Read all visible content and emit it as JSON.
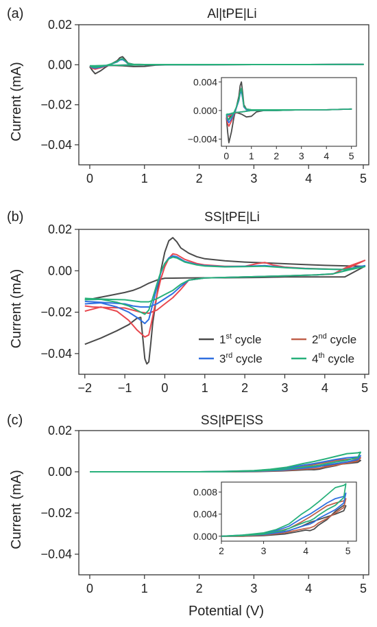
{
  "figure": {
    "xlabel": "Potential (V)",
    "ylabel": "Current (mA)",
    "colors": {
      "cycle1": "#4a4a4a",
      "cycle2": "#e8474d",
      "cycle2_b": "#c0604a",
      "cycle3": "#2f6fe0",
      "cycle4": "#27b07a",
      "axis": "#333333"
    }
  },
  "chart_data": [
    {
      "type": "line",
      "panel_label": "(a)",
      "title": "Al|tPE|Li",
      "xlabel": "",
      "ylabel": "Current (mA)",
      "xlim": [
        -0.2,
        5.1
      ],
      "ylim": [
        -0.05,
        0.02
      ],
      "xticks": [
        0,
        1,
        2,
        3,
        4,
        5
      ],
      "yticks": [
        0.02,
        0.0,
        -0.02,
        -0.04
      ],
      "ytick_labels": [
        "0.02",
        "0.00",
        "−0.02",
        "−0.04"
      ],
      "series": [
        {
          "color_key": "cycle1",
          "x": [
            0.0,
            0.05,
            0.1,
            0.2,
            0.3,
            0.4,
            0.5,
            0.55,
            0.6,
            0.65,
            0.7,
            0.8,
            1.0,
            1.5,
            2,
            3,
            4,
            5,
            4,
            3,
            2,
            1.5,
            1.2,
            1.0,
            0.8,
            0.6,
            0.4,
            0.2,
            0.1,
            0.05,
            0.0
          ],
          "y": [
            -0.001,
            -0.003,
            -0.0045,
            -0.003,
            -0.001,
            0.0005,
            0.002,
            0.0035,
            0.004,
            0.0025,
            0.0008,
            0.0002,
            0.0001,
            0.0001,
            0.0001,
            0.0001,
            0.0001,
            0.0002,
            0.0001,
            0.0001,
            0.0,
            0.0,
            -0.0002,
            -0.0008,
            -0.0009,
            -0.0005,
            -0.0003,
            -0.0006,
            -0.0012,
            -0.0015,
            -0.001
          ]
        },
        {
          "color_key": "cycle2",
          "x": [
            0.0,
            0.05,
            0.1,
            0.2,
            0.3,
            0.4,
            0.5,
            0.55,
            0.6,
            0.65,
            0.7,
            0.8,
            1.0,
            2,
            3,
            4,
            5,
            4,
            3,
            2,
            1.0,
            0.6,
            0.3,
            0.1,
            0.0
          ],
          "y": [
            -0.0008,
            -0.0018,
            -0.0022,
            -0.0015,
            -0.0006,
            0.0004,
            0.0015,
            0.0026,
            0.0028,
            0.0018,
            0.0005,
            0.0001,
            0.0001,
            0.0001,
            0.0001,
            0.0001,
            0.0002,
            0.0001,
            0.0001,
            0.0,
            0.0,
            -0.0002,
            -0.0004,
            -0.0008,
            -0.0008
          ]
        },
        {
          "color_key": "cycle3",
          "x": [
            0.0,
            0.05,
            0.1,
            0.2,
            0.3,
            0.4,
            0.5,
            0.55,
            0.6,
            0.65,
            0.7,
            0.8,
            1.0,
            2,
            3,
            4,
            5,
            4,
            3,
            2,
            1.0,
            0.6,
            0.3,
            0.1,
            0.0
          ],
          "y": [
            -0.0006,
            -0.0014,
            -0.0017,
            -0.0012,
            -0.0005,
            0.0004,
            0.0014,
            0.0024,
            0.0026,
            0.0017,
            0.0005,
            0.0001,
            0.0001,
            0.0001,
            0.0001,
            0.0001,
            0.0002,
            0.0001,
            0.0001,
            0.0,
            0.0,
            -0.0002,
            -0.0003,
            -0.0006,
            -0.0006
          ]
        },
        {
          "color_key": "cycle4",
          "x": [
            0.0,
            0.05,
            0.1,
            0.2,
            0.3,
            0.4,
            0.5,
            0.55,
            0.6,
            0.65,
            0.7,
            0.8,
            1.0,
            2,
            3,
            4,
            5,
            4,
            3,
            2,
            1.0,
            0.6,
            0.3,
            0.1,
            0.0
          ],
          "y": [
            -0.0005,
            -0.0011,
            -0.0013,
            -0.0009,
            -0.0003,
            0.0005,
            0.0016,
            0.0026,
            0.0031,
            0.0019,
            0.0006,
            0.0002,
            0.0001,
            0.0001,
            0.0001,
            0.0001,
            0.0002,
            0.0001,
            0.0001,
            0.0,
            0.0,
            -0.0002,
            -0.0003,
            -0.0005,
            -0.0005
          ]
        }
      ],
      "inset": {
        "xlim": [
          -0.2,
          5.2
        ],
        "ylim": [
          -0.005,
          0.0046
        ],
        "xticks": [
          0,
          1,
          2,
          3,
          4,
          5
        ],
        "yticks": [
          0.004,
          0.0,
          -0.004
        ],
        "ytick_labels": [
          "0.004",
          "0.000",
          "−0.004"
        ]
      }
    },
    {
      "type": "line",
      "panel_label": "(b)",
      "title": "SS|tPE|Li",
      "xlabel": "",
      "ylabel": "Current (mA)",
      "xlim": [
        -2.15,
        5.1
      ],
      "ylim": [
        -0.05,
        0.02
      ],
      "xticks": [
        -2,
        -1,
        0,
        1,
        2,
        3,
        4,
        5
      ],
      "xtick_labels": [
        "−2",
        "−1",
        "0",
        "1",
        "2",
        "3",
        "4",
        "5"
      ],
      "yticks": [
        0.02,
        0.0,
        -0.02,
        -0.04
      ],
      "ytick_labels": [
        "0.02",
        "0.00",
        "−0.02",
        "−0.04"
      ],
      "legend": [
        {
          "label": "1",
          "sup": "st",
          "tail": " cycle",
          "color_key": "cycle1"
        },
        {
          "label": "2",
          "sup": "nd",
          "tail": " cycle",
          "color_key": "cycle2_b"
        },
        {
          "label": "3",
          "sup": "rd",
          "tail": " cycle",
          "color_key": "cycle3"
        },
        {
          "label": "4",
          "sup": "th",
          "tail": " cycle",
          "color_key": "cycle4"
        }
      ],
      "series": [
        {
          "color_key": "cycle1",
          "x": [
            -2.0,
            -1.6,
            -1.2,
            -0.9,
            -0.7,
            -0.6,
            -0.5,
            -0.45,
            -0.4,
            -0.35,
            -0.3,
            -0.2,
            -0.1,
            0.0,
            0.1,
            0.2,
            0.3,
            0.4,
            0.6,
            0.8,
            1.0,
            1.5,
            2.0,
            2.5,
            3.0,
            3.5,
            4.0,
            4.5,
            5.0,
            4.5,
            4.0,
            3.5,
            3.0,
            2.5,
            2.0,
            1.5,
            1.0,
            0.5,
            0.0,
            -0.2,
            -0.4,
            -0.6,
            -0.8,
            -1.0,
            -1.4,
            -1.8,
            -2.0
          ],
          "y": [
            -0.0355,
            -0.0325,
            -0.029,
            -0.026,
            -0.023,
            -0.0225,
            -0.0425,
            -0.045,
            -0.044,
            -0.035,
            -0.025,
            -0.012,
            0.0,
            0.009,
            0.0145,
            0.016,
            0.014,
            0.011,
            0.0085,
            0.0068,
            0.0058,
            0.0048,
            0.0042,
            0.0038,
            0.0034,
            0.003,
            0.0026,
            0.0024,
            0.0022,
            -0.003,
            -0.003,
            -0.003,
            -0.003,
            -0.0032,
            -0.0033,
            -0.0034,
            -0.0034,
            -0.0035,
            -0.0036,
            -0.0045,
            -0.006,
            -0.008,
            -0.0095,
            -0.0105,
            -0.012,
            -0.0135,
            -0.014
          ]
        },
        {
          "color_key": "cycle2",
          "x": [
            -2.0,
            -1.6,
            -1.2,
            -0.9,
            -0.7,
            -0.5,
            -0.4,
            -0.3,
            -0.2,
            -0.1,
            0.0,
            0.1,
            0.2,
            0.3,
            0.5,
            0.8,
            1.0,
            1.5,
            2.0,
            2.3,
            2.5,
            2.7,
            3.0,
            3.5,
            4.0,
            4.5,
            5.0,
            4.6,
            4.2,
            3.8,
            3.0,
            2.0,
            1.0,
            0.6,
            0.4,
            0.2,
            0.0,
            -0.2,
            -0.4,
            -0.6,
            -0.8,
            -1.0,
            -1.4,
            -1.8,
            -2.0
          ],
          "y": [
            -0.0195,
            -0.0175,
            -0.0195,
            -0.024,
            -0.0285,
            -0.032,
            -0.031,
            -0.022,
            -0.012,
            -0.004,
            0.002,
            0.006,
            0.0082,
            0.0078,
            0.0055,
            0.0035,
            0.0028,
            0.0022,
            0.0022,
            0.0034,
            0.004,
            0.0028,
            0.0018,
            0.0012,
            0.0009,
            0.0006,
            0.005,
            0.0022,
            -0.0016,
            -0.002,
            -0.0025,
            -0.003,
            -0.0035,
            -0.0045,
            -0.009,
            -0.013,
            -0.016,
            -0.019,
            -0.0205,
            -0.02,
            -0.019,
            -0.018,
            -0.0178,
            -0.0175,
            -0.017
          ]
        },
        {
          "color_key": "cycle3",
          "x": [
            -2.0,
            -1.6,
            -1.2,
            -0.9,
            -0.7,
            -0.5,
            -0.4,
            -0.3,
            -0.2,
            -0.1,
            0.0,
            0.1,
            0.2,
            0.3,
            0.5,
            0.8,
            1.0,
            1.5,
            2.0,
            2.5,
            3.0,
            3.5,
            4.0,
            4.5,
            5.0,
            4.6,
            4.2,
            3.8,
            3.0,
            2.0,
            1.0,
            0.6,
            0.4,
            0.2,
            0.0,
            -0.2,
            -0.4,
            -0.6,
            -0.8,
            -1.0,
            -1.4,
            -1.8,
            -2.0
          ],
          "y": [
            -0.016,
            -0.0155,
            -0.0175,
            -0.02,
            -0.0225,
            -0.0255,
            -0.0235,
            -0.016,
            -0.008,
            -0.001,
            0.0035,
            0.0062,
            0.0072,
            0.0068,
            0.0045,
            0.003,
            0.0025,
            0.002,
            0.0022,
            0.0025,
            0.0016,
            0.0011,
            0.0008,
            0.0006,
            0.0025,
            0.0005,
            -0.0015,
            -0.002,
            -0.0025,
            -0.003,
            -0.0035,
            -0.0045,
            -0.0075,
            -0.011,
            -0.0135,
            -0.016,
            -0.0175,
            -0.0175,
            -0.017,
            -0.016,
            -0.0155,
            -0.015,
            -0.0148
          ]
        },
        {
          "color_key": "cycle4",
          "x": [
            -2.0,
            -1.6,
            -1.2,
            -0.9,
            -0.7,
            -0.5,
            -0.4,
            -0.3,
            -0.2,
            -0.1,
            0.0,
            0.1,
            0.2,
            0.3,
            0.5,
            0.8,
            1.0,
            1.5,
            2.0,
            2.5,
            3.0,
            3.5,
            4.0,
            4.5,
            5.0,
            4.6,
            4.2,
            3.8,
            3.0,
            2.0,
            1.0,
            0.6,
            0.4,
            0.2,
            0.0,
            -0.2,
            -0.4,
            -0.6,
            -0.8,
            -1.0,
            -1.4,
            -1.8,
            -2.0
          ],
          "y": [
            -0.014,
            -0.0138,
            -0.0152,
            -0.017,
            -0.019,
            -0.021,
            -0.019,
            -0.013,
            -0.0065,
            -0.0005,
            0.0035,
            0.0058,
            0.0066,
            0.0062,
            0.0042,
            0.0028,
            0.0023,
            0.0019,
            0.002,
            0.0022,
            0.0015,
            0.001,
            0.0008,
            0.0006,
            0.002,
            0.0004,
            -0.0015,
            -0.002,
            -0.0025,
            -0.003,
            -0.0035,
            -0.0045,
            -0.0065,
            -0.0095,
            -0.0115,
            -0.0135,
            -0.015,
            -0.015,
            -0.0145,
            -0.014,
            -0.0138,
            -0.0135,
            -0.0133
          ]
        }
      ]
    },
    {
      "type": "line",
      "panel_label": "(c)",
      "title": "SS|tPE|SS",
      "xlabel": "Potential (V)",
      "ylabel": "Current (mA)",
      "xlim": [
        -0.2,
        5.1
      ],
      "ylim": [
        -0.05,
        0.02
      ],
      "xticks": [
        0,
        1,
        2,
        3,
        4,
        5
      ],
      "yticks": [
        0.02,
        0.0,
        -0.02,
        -0.04
      ],
      "ytick_labels": [
        "0.02",
        "0.00",
        "−0.02",
        "−0.04"
      ],
      "series": [
        {
          "color_key": "cycle1",
          "x": [
            0.0,
            1.0,
            2.0,
            2.5,
            3.0,
            3.3,
            3.6,
            3.9,
            4.1,
            4.3,
            4.5,
            4.7,
            4.9,
            4.95,
            4.9,
            4.7,
            4.5,
            4.3,
            4.2,
            4.1,
            4.0,
            3.8,
            3.5,
            3.0,
            2.5,
            2.0,
            1.0,
            0.0
          ],
          "y": [
            0.0,
            0.0,
            0.0,
            0.0001,
            0.0003,
            0.0006,
            0.001,
            0.0018,
            0.0025,
            0.003,
            0.0035,
            0.004,
            0.0046,
            0.0055,
            0.0056,
            0.0045,
            0.003,
            0.002,
            0.0013,
            0.001,
            0.0011,
            0.0008,
            0.0004,
            0.0001,
            0.0,
            0.0,
            0.0,
            0.0
          ]
        },
        {
          "color_key": "cycle2_b",
          "x": [
            0.0,
            1.0,
            2.0,
            2.5,
            3.0,
            3.3,
            3.6,
            3.9,
            4.1,
            4.3,
            4.5,
            4.7,
            4.9,
            4.95,
            4.9,
            4.7,
            4.5,
            4.3,
            4.2,
            4.1,
            4.0,
            3.8,
            3.5,
            3.0,
            2.5,
            2.0,
            1.0,
            0.0
          ],
          "y": [
            0.0,
            0.0,
            0.0,
            0.0001,
            0.0004,
            0.0008,
            0.0014,
            0.0026,
            0.0035,
            0.0045,
            0.0055,
            0.006,
            0.0064,
            0.0068,
            0.0052,
            0.0042,
            0.0032,
            0.0024,
            0.0018,
            0.0015,
            0.0014,
            0.0011,
            0.0006,
            0.0002,
            0.0,
            0.0,
            0.0,
            0.0
          ]
        },
        {
          "color_key": "cycle3",
          "x": [
            0.0,
            1.0,
            2.0,
            2.5,
            3.0,
            3.3,
            3.6,
            3.9,
            4.1,
            4.3,
            4.5,
            4.7,
            4.9,
            4.95,
            4.9,
            4.7,
            4.5,
            4.3,
            4.2,
            4.1,
            4.0,
            3.8,
            3.5,
            3.0,
            2.5,
            2.0,
            1.0,
            0.0
          ],
          "y": [
            0.0,
            0.0,
            0.0,
            0.0002,
            0.0005,
            0.001,
            0.0018,
            0.0032,
            0.004,
            0.005,
            0.006,
            0.0068,
            0.0072,
            0.0078,
            0.006,
            0.0048,
            0.004,
            0.0032,
            0.0026,
            0.0022,
            0.002,
            0.0015,
            0.0008,
            0.0003,
            0.0001,
            0.0,
            0.0,
            0.0
          ]
        },
        {
          "color_key": "cycle4",
          "x": [
            0.0,
            1.0,
            2.0,
            2.5,
            3.0,
            3.3,
            3.6,
            3.9,
            4.1,
            4.3,
            4.5,
            4.7,
            4.9,
            4.95,
            4.9,
            4.7,
            4.5,
            4.3,
            4.2,
            4.1,
            4.0,
            3.8,
            3.5,
            3.0,
            2.5,
            2.0,
            1.0,
            0.0
          ],
          "y": [
            0.0,
            0.0,
            0.0,
            0.0002,
            0.0006,
            0.0012,
            0.0022,
            0.004,
            0.005,
            0.0062,
            0.0075,
            0.0088,
            0.0092,
            0.0095,
            0.007,
            0.0056,
            0.0048,
            0.0038,
            0.0032,
            0.0028,
            0.0026,
            0.002,
            0.0011,
            0.0004,
            0.0001,
            0.0,
            0.0,
            0.0
          ]
        }
      ],
      "inset": {
        "xlim": [
          2.0,
          5.2
        ],
        "ylim": [
          -0.0009,
          0.0098
        ],
        "xticks": [
          2,
          3,
          4,
          5
        ],
        "yticks": [
          0.008,
          0.004,
          0.0
        ],
        "ytick_labels": [
          "0.008",
          "0.004",
          "0.000"
        ]
      }
    }
  ]
}
